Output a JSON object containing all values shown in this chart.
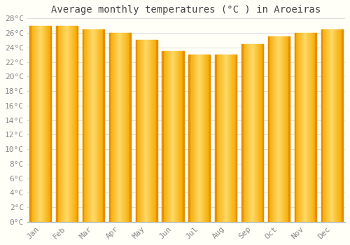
{
  "title": "Average monthly temperatures (°C ) in Aroeiras",
  "months": [
    "Jan",
    "Feb",
    "Mar",
    "Apr",
    "May",
    "Jun",
    "Jul",
    "Aug",
    "Sep",
    "Oct",
    "Nov",
    "Dec"
  ],
  "values": [
    27.0,
    27.0,
    26.5,
    26.0,
    25.0,
    23.5,
    23.0,
    23.0,
    24.5,
    25.5,
    26.0,
    26.5
  ],
  "bar_color_edge": "#F5A800",
  "bar_color_center": "#FFD966",
  "ylim": [
    0,
    28
  ],
  "ytick_step": 2,
  "background_color": "#FFFFF8",
  "plot_bg_color": "#FFFFF8",
  "grid_color": "#DDDDDD",
  "title_fontsize": 10,
  "tick_fontsize": 8,
  "bar_width": 0.82
}
